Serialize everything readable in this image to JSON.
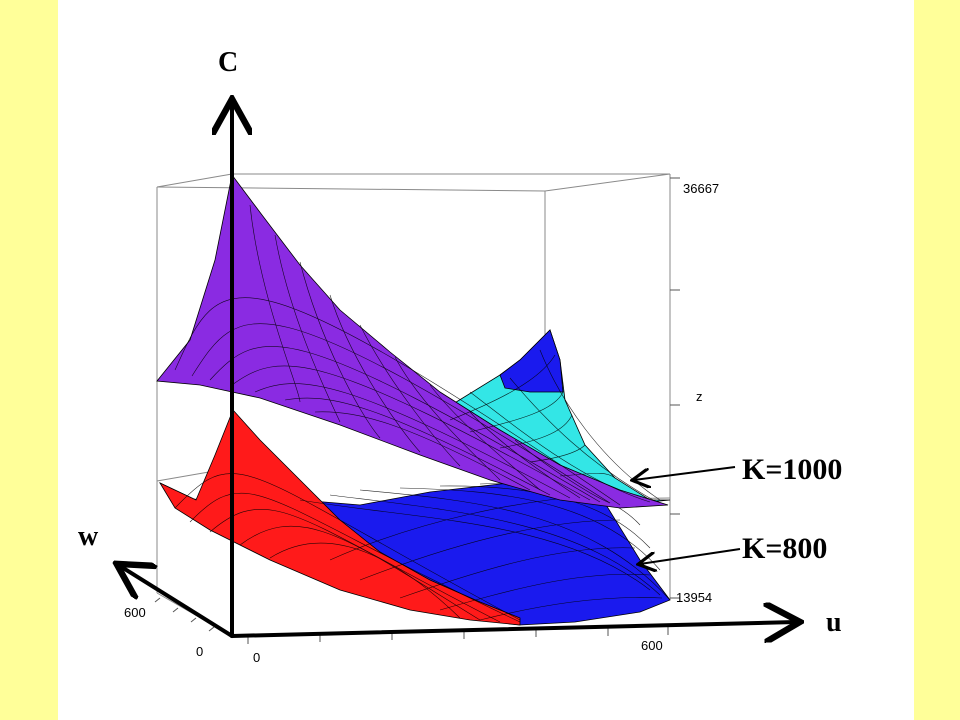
{
  "axes": {
    "vertical_label": "C",
    "depth_label": "w",
    "horizontal_label": "u",
    "z_axis_name": "z"
  },
  "ticks": {
    "z_max": "36667",
    "z_min": "13954",
    "u_min": "0",
    "u_max": "600",
    "w_min": "0",
    "w_max": "600"
  },
  "annotations": {
    "upper_surface": "K=1000",
    "lower_surface": "K=800"
  },
  "colors": {
    "slide_background": "#FFFF99",
    "panel_background": "#FFFFFF",
    "surface_k1000_front": "#8A2BE2",
    "surface_k1000_back": "#33E6E6",
    "surface_k800_front": "#FF1A1A",
    "surface_k800_back": "#1A1AEE"
  }
}
